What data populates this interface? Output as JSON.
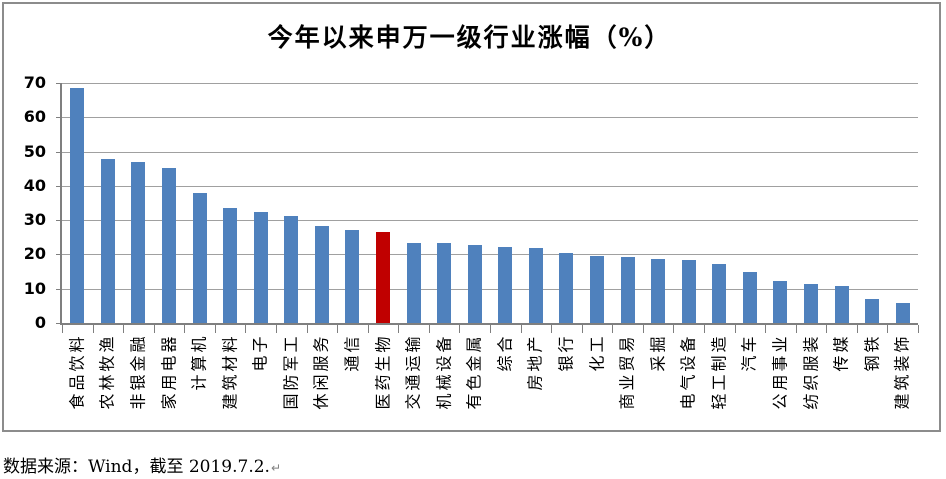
{
  "source_note": "数据来源：Wind，截至 2019.7.2.",
  "paragraph_mark": "↵",
  "colors": {
    "bar": "#4f81bd",
    "highlight": "#c00000",
    "gridline": "#a0a0a0",
    "axis": "#7f7f7f",
    "border": "#8c8c8c",
    "text": "#000000"
  },
  "chart_data": {
    "type": "bar",
    "title": "今年以来申万一级行业涨幅（%）",
    "xlabel": "",
    "ylabel": "",
    "categories": [
      "食品饮料",
      "农林牧渔",
      "非银金融",
      "家用电器",
      "计算机",
      "建筑材料",
      "电子",
      "国防军工",
      "休闲服务",
      "通信",
      "医药生物",
      "交通运输",
      "机械设备",
      "有色金属",
      "综合",
      "房地产",
      "银行",
      "化工",
      "商业贸易",
      "采掘",
      "电气设备",
      "轻工制造",
      "汽车",
      "公用事业",
      "纺织服装",
      "传媒",
      "钢铁",
      "建筑装饰"
    ],
    "values": [
      68.5,
      47.7,
      47.0,
      45.2,
      37.8,
      33.5,
      32.4,
      31.2,
      28.3,
      27.1,
      26.5,
      23.3,
      23.3,
      22.8,
      22.1,
      22.0,
      20.3,
      19.6,
      19.3,
      18.7,
      18.4,
      17.2,
      14.8,
      12.3,
      11.5,
      10.8,
      6.9,
      5.7
    ],
    "highlight_category": "医药生物",
    "highlight_index": 10,
    "ylim": [
      0,
      70
    ],
    "yticks": [
      0,
      10,
      20,
      30,
      40,
      50,
      60,
      70
    ],
    "grid": true,
    "legend": false,
    "bar_orientation": "vertical",
    "xtick_label_rotation": 90
  }
}
